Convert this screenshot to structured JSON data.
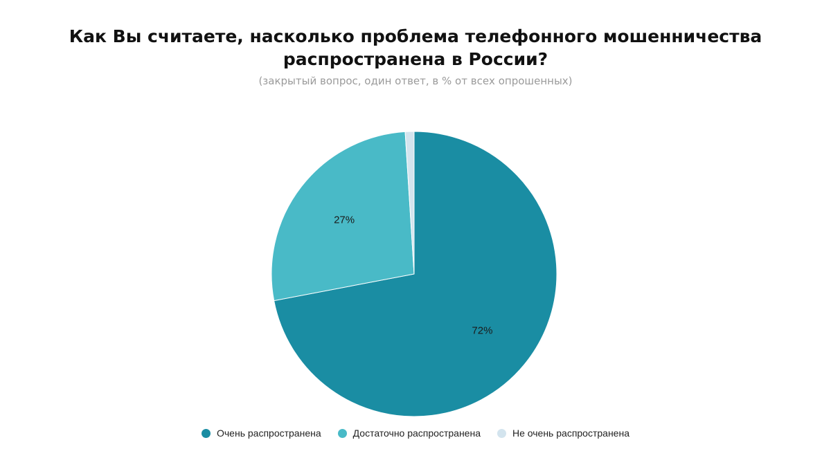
{
  "header": {
    "title_line1": "Как Вы считаете, насколько проблема телефонного мошенничества",
    "title_line2": "распространена в России?",
    "subtitle": "(закрытый вопрос, один ответ, в % от всех опрошенных)"
  },
  "chart_data": {
    "type": "pie",
    "title": "Как Вы считаете, насколько проблема телефонного мошенничества распространена в России?",
    "subtitle": "(закрытый вопрос, один ответ, в % от всех опрошенных)",
    "unit": "%",
    "legend_position": "bottom",
    "slices": [
      {
        "name": "Очень распространена",
        "value": 72,
        "label": "72%",
        "color": "#1a8da3"
      },
      {
        "name": "Достаточно распространена",
        "value": 27,
        "label": "27%",
        "color": "#49bac7"
      },
      {
        "name": "Не очень распространена",
        "value": 1,
        "label": "",
        "color": "#d3e4ee"
      }
    ]
  }
}
